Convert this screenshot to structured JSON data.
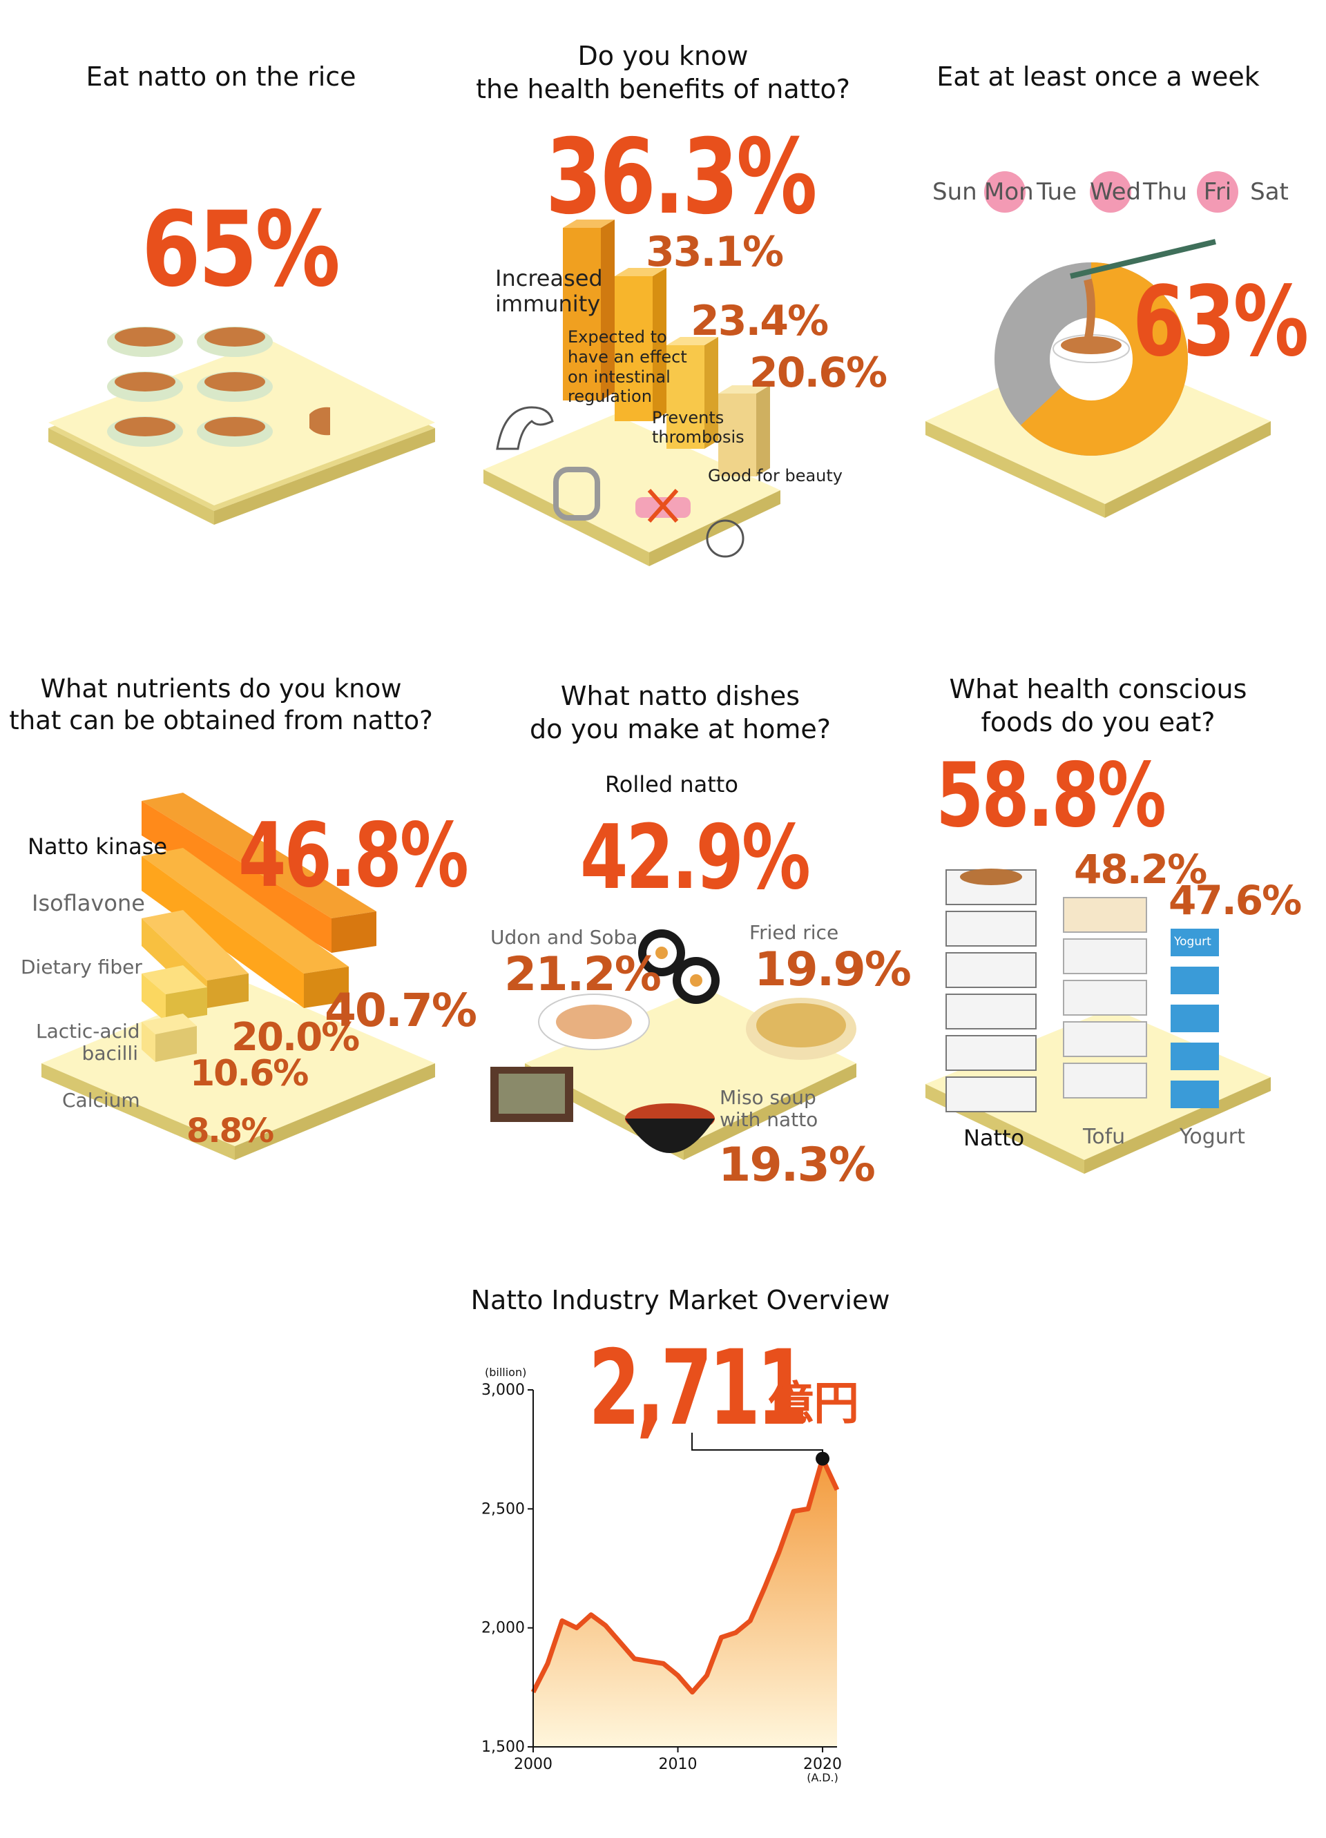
{
  "panel1": {
    "title": "Eat natto on the rice",
    "value": "65%"
  },
  "panel2": {
    "title_line1": "Do you know",
    "title_line2": "the health benefits of natto?",
    "items": [
      {
        "label_lines": [
          "Increased",
          "immunity"
        ],
        "value": "36.3%"
      },
      {
        "label_lines": [
          "Expected to",
          "have an effect",
          "on intestinal",
          "regulation"
        ],
        "value": "33.1%"
      },
      {
        "label_lines": [
          "Prevents",
          "thrombosis"
        ],
        "value": "23.4%"
      },
      {
        "label_lines": [
          "Good for beauty"
        ],
        "value": "20.6%"
      }
    ]
  },
  "panel3": {
    "title": "Eat at least once a week",
    "days": [
      "Sun",
      "Mon",
      "Tue",
      "Wed",
      "Thu",
      "Fri",
      "Sat"
    ],
    "highlighted_days": [
      "Mon",
      "Wed",
      "Fri"
    ],
    "value": "63%"
  },
  "panel4": {
    "title_line1": "What nutrients do you know",
    "title_line2": "that can be obtained from natto?",
    "items": [
      {
        "label_lines": [
          "Natto kinase"
        ],
        "value": "46.8%"
      },
      {
        "label_lines": [
          "Isoflavone"
        ],
        "value": "40.7%"
      },
      {
        "label_lines": [
          "Dietary fiber"
        ],
        "value": "20.0%"
      },
      {
        "label_lines": [
          "Lactic-acid",
          "bacilli"
        ],
        "value": "10.6%"
      },
      {
        "label_lines": [
          "Calcium"
        ],
        "value": "8.8%"
      }
    ]
  },
  "panel5": {
    "title_line1": "What natto dishes",
    "title_line2": "do you make at home?",
    "items": [
      {
        "label_lines": [
          "Rolled natto"
        ],
        "value": "42.9%"
      },
      {
        "label_lines": [
          "Udon and Soba"
        ],
        "value": "21.2%"
      },
      {
        "label_lines": [
          "Fried rice"
        ],
        "value": "19.9%"
      },
      {
        "label_lines": [
          "Miso soup",
          "with natto"
        ],
        "value": "19.3%"
      }
    ]
  },
  "panel6": {
    "title_line1": "What health conscious",
    "title_line2": "foods do you eat?",
    "items": [
      {
        "label": "Natto",
        "value": "58.8%"
      },
      {
        "label": "Tofu",
        "value": "48.2%"
      },
      {
        "label": "Yogurt",
        "value": "47.6%"
      }
    ],
    "yogurt_cup_text": "Yogurt"
  },
  "colors": {
    "accent": "#e8501c",
    "accent_dark": "#c8561e",
    "board": "#fdf5c2",
    "board_side": "#e8d98a",
    "area_top": "#f39a3c"
  },
  "chart_data": {
    "type": "area",
    "title": "Natto Industry Market Overview",
    "ylabel": "(billion)",
    "xlabel": "(A.D.)",
    "x_ticks": [
      "2000",
      "2010",
      "2020"
    ],
    "y_ticks": [
      "1,500",
      "2,000",
      "2,500",
      "3,000"
    ],
    "xlim": [
      2000,
      2021
    ],
    "ylim": [
      1500,
      3000
    ],
    "highlight_label": "2,711",
    "highlight_unit": "億円",
    "highlight_year": 2020,
    "x": [
      2000,
      2001,
      2002,
      2003,
      2004,
      2005,
      2006,
      2007,
      2008,
      2009,
      2010,
      2011,
      2012,
      2013,
      2014,
      2015,
      2016,
      2017,
      2018,
      2019,
      2020,
      2021
    ],
    "values": [
      1730,
      1850,
      2030,
      2000,
      2055,
      2010,
      1940,
      1870,
      1860,
      1850,
      1800,
      1730,
      1800,
      1960,
      1980,
      2030,
      2170,
      2320,
      2490,
      2500,
      2711,
      2580
    ]
  }
}
